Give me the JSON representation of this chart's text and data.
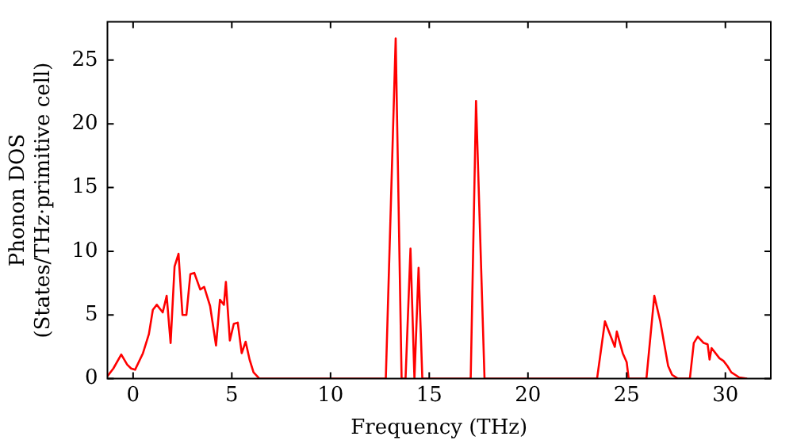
{
  "chart_data": {
    "type": "line",
    "xlabel": "Frequency (THz)",
    "ylabel": "Phonon DOS\n(States/THz·primitive cell)",
    "xlim": [
      -1.3,
      32.3
    ],
    "ylim": [
      0,
      28
    ],
    "xticks": [
      0,
      5,
      10,
      15,
      20,
      25,
      30
    ],
    "yticks": [
      0,
      5,
      10,
      15,
      20,
      25
    ],
    "grid": false,
    "legend": false,
    "series": [
      {
        "color": "#ff0000",
        "x": [
          -1.3,
          -1.0,
          -0.6,
          -0.3,
          -0.1,
          0.1,
          0.5,
          0.8,
          1.0,
          1.2,
          1.5,
          1.7,
          1.9,
          2.1,
          2.3,
          2.5,
          2.7,
          2.9,
          3.1,
          3.4,
          3.6,
          3.9,
          4.2,
          4.4,
          4.6,
          4.7,
          4.9,
          5.1,
          5.3,
          5.5,
          5.7,
          5.9,
          6.1,
          6.4,
          12.8,
          13.3,
          13.6,
          13.8,
          14.05,
          14.25,
          14.46,
          14.65,
          17.1,
          17.37,
          17.8,
          23.5,
          23.9,
          24.4,
          24.5,
          24.8,
          25.0,
          25.1,
          26.0,
          26.4,
          26.7,
          27.1,
          27.3,
          27.6,
          28.2,
          28.4,
          28.6,
          28.9,
          29.1,
          29.2,
          29.3,
          29.7,
          29.9,
          30.1,
          30.3,
          30.7,
          31.1
        ],
        "values": [
          0.2,
          0.8,
          1.9,
          1.1,
          0.8,
          0.7,
          2.0,
          3.5,
          5.4,
          5.8,
          5.2,
          6.5,
          2.8,
          8.8,
          9.8,
          5.0,
          5.0,
          8.2,
          8.3,
          7.0,
          7.2,
          5.7,
          2.6,
          6.2,
          5.8,
          7.6,
          3.0,
          4.3,
          4.4,
          2.0,
          2.9,
          1.5,
          0.5,
          0,
          0,
          26.7,
          0,
          0,
          10.2,
          0,
          8.7,
          0,
          0,
          21.8,
          0,
          0,
          4.5,
          2.5,
          3.7,
          2.0,
          1.3,
          0,
          0,
          6.5,
          4.5,
          1.0,
          0.3,
          0,
          0,
          2.8,
          3.3,
          2.8,
          2.7,
          1.5,
          2.4,
          1.6,
          1.4,
          1.0,
          0.5,
          0.1,
          0
        ]
      }
    ]
  }
}
